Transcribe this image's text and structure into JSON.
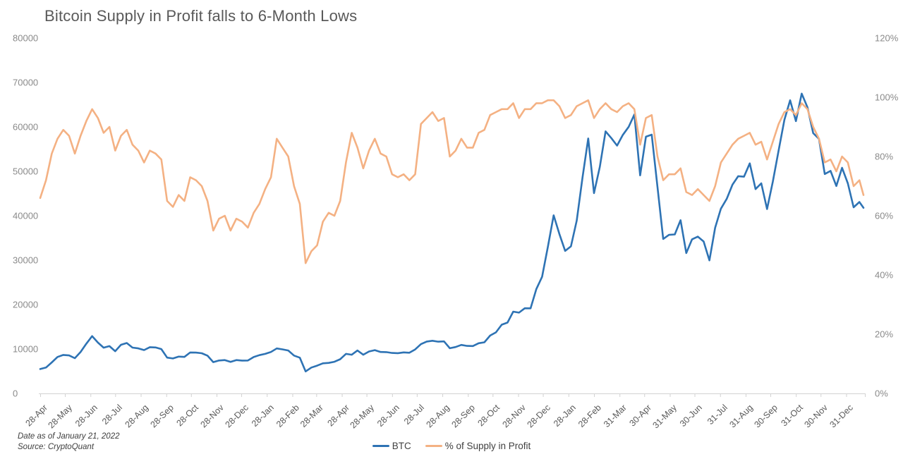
{
  "title": "Bitcoin Supply in Profit falls to 6-Month Lows",
  "footer": {
    "line1": "Date as of January 21, 2022",
    "line2": "Source: CryptoQuant"
  },
  "legend": {
    "position": "bottom-center",
    "items": [
      {
        "label": "BTC",
        "color": "#2E73B4"
      },
      {
        "label": "% of Supply in Profit",
        "color": "#F4B183"
      }
    ]
  },
  "colors": {
    "btc_line": "#2E73B4",
    "supply_line": "#F4B183",
    "title_text": "#595959",
    "axis_label_text": "#8a8a8a",
    "tick_label_text": "#595959",
    "axis_line": "#d2d2d2",
    "background": "#ffffff"
  },
  "chart_data": {
    "type": "line",
    "title": "Bitcoin Supply in Profit falls to 6-Month Lows",
    "grid": false,
    "legend_position": "bottom-center",
    "x_axis": {
      "start_date": "28-Apr-2019",
      "end_date": "21-Jan-2022",
      "total_days": 999,
      "sample_interval_days": 7,
      "tick_labels": [
        "28-Apr",
        "28-May",
        "28-Jun",
        "28-Jul",
        "28-Aug",
        "28-Sep",
        "28-Oct",
        "28-Nov",
        "28-Dec",
        "28-Jan",
        "28-Feb",
        "28-Mar",
        "28-Apr",
        "28-May",
        "28-Jun",
        "28-Jul",
        "28-Aug",
        "28-Sep",
        "28-Oct",
        "28-Nov",
        "28-Dec",
        "28-Jan",
        "28-Feb",
        "31-Mar",
        "30-Apr",
        "31-May",
        "30-Jun",
        "31-Jul",
        "31-Aug",
        "30-Sep",
        "31-Oct",
        "30-Nov",
        "31-Dec"
      ],
      "tick_days": [
        0,
        30,
        61,
        91,
        122,
        153,
        183,
        214,
        244,
        275,
        306,
        335,
        366,
        396,
        427,
        457,
        488,
        519,
        549,
        580,
        610,
        641,
        672,
        703,
        733,
        764,
        794,
        825,
        856,
        886,
        917,
        947,
        978
      ]
    },
    "y_left": {
      "title": "",
      "min": 0,
      "max": 80000,
      "step": 10000,
      "labels": [
        "0",
        "10000",
        "20000",
        "30000",
        "40000",
        "50000",
        "60000",
        "70000",
        "80000"
      ]
    },
    "y_right": {
      "title": "",
      "min": 0,
      "max": 120,
      "step": 20,
      "labels": [
        "0%",
        "20%",
        "40%",
        "60%",
        "80%",
        "100%",
        "120%"
      ]
    },
    "series": [
      {
        "name": "BTC",
        "axis": "left",
        "color": "#2E73B4",
        "values": [
          5500,
          5830,
          6980,
          8200,
          8670,
          8560,
          7930,
          9320,
          11200,
          12900,
          11450,
          10300,
          10650,
          9510,
          10960,
          11350,
          10320,
          10140,
          9760,
          10410,
          10350,
          9990,
          8060,
          7870,
          8290,
          8220,
          9230,
          9190,
          9040,
          8500,
          7040,
          7420,
          7510,
          7090,
          7510,
          7390,
          7410,
          8190,
          8620,
          8900,
          9340,
          10120,
          9920,
          9660,
          8530,
          8040,
          4950,
          5820,
          6250,
          6780,
          6870,
          7130,
          7700,
          8900,
          8720,
          9670,
          8720,
          9450,
          9750,
          9330,
          9300,
          9110,
          9070,
          9240,
          9160,
          9900,
          11100,
          11680,
          11850,
          11650,
          11710,
          10170,
          10440,
          10920,
          10700,
          10670,
          11300,
          11510,
          13030,
          13740,
          15480,
          15960,
          18420,
          18190,
          19170,
          19160,
          23480,
          26250,
          33000,
          40100,
          35900,
          32100,
          33110,
          38900,
          48600,
          57400,
          45100,
          50970,
          59000,
          57500,
          55800,
          58200,
          60000,
          62800,
          49100,
          57800,
          58250,
          46450,
          34770,
          35700,
          35800,
          39000,
          31600,
          34700,
          35300,
          34200,
          29950,
          37300,
          41600,
          43800,
          47000,
          48900,
          48800,
          51800,
          46000,
          47300,
          41500,
          47700,
          54700,
          61600,
          66000,
          61300,
          67500,
          64400,
          58600,
          57300,
          49400,
          50100,
          46700,
          50800,
          47300,
          41900,
          43100,
          41800
        ]
      },
      {
        "name": "% of Supply in Profit",
        "axis": "right",
        "color": "#F4B183",
        "values": [
          66,
          72,
          81,
          86,
          89,
          87,
          81,
          87,
          92,
          96,
          93,
          88,
          90,
          82,
          87,
          89,
          84,
          82,
          78,
          82,
          81,
          79,
          65,
          63,
          67,
          65,
          73,
          72,
          70,
          65,
          55,
          59,
          60,
          55,
          59,
          58,
          56,
          61,
          64,
          69,
          73,
          86,
          83,
          80,
          70,
          64,
          44,
          48,
          50,
          58,
          61,
          60,
          65,
          78,
          88,
          83,
          76,
          82,
          86,
          81,
          80,
          74,
          73,
          74,
          72,
          74,
          91,
          93,
          95,
          92,
          93,
          80,
          82,
          86,
          83,
          83,
          88,
          89,
          94,
          95,
          96,
          96,
          98,
          93,
          96,
          96,
          98,
          98,
          99,
          99,
          97,
          93,
          94,
          97,
          98,
          99,
          93,
          96,
          98,
          96,
          95,
          97,
          98,
          96,
          84,
          93,
          94,
          80,
          72,
          74,
          74,
          76,
          68,
          67,
          69,
          67,
          65,
          70,
          78,
          81,
          84,
          86,
          87,
          88,
          84,
          85,
          79,
          85,
          91,
          95,
          96,
          94,
          98,
          96,
          90,
          86,
          78,
          79,
          75,
          80,
          78,
          70,
          72,
          67
        ]
      }
    ]
  }
}
